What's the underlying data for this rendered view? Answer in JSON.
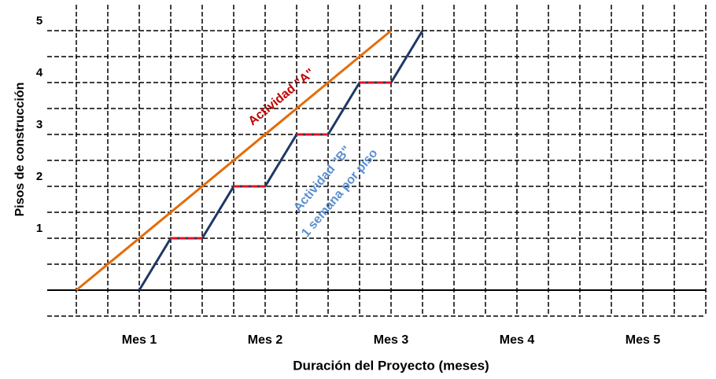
{
  "chart_data": {
    "type": "line",
    "x_title": "Duración del Proyecto (meses)",
    "y_title": "Pisos de construcción",
    "categories": [
      "Mes 1",
      "Mes 2",
      "Mes 3",
      "Mes 4",
      "Mes 5"
    ],
    "xlim": [
      0,
      20
    ],
    "xticks": [
      0,
      1,
      2,
      3,
      4,
      5,
      6,
      7,
      8,
      9,
      10,
      11,
      12,
      13,
      14,
      15,
      16,
      17,
      18,
      19,
      20
    ],
    "ylim": [
      -0.5,
      5.5
    ],
    "yticks": [
      1,
      2,
      3,
      4,
      5
    ],
    "y_minor_grid": [
      -0.5,
      0.5,
      1.5,
      2.5,
      3.5,
      4.5
    ],
    "grid": true,
    "wait_color": "#e8101a",
    "series": [
      {
        "name": "Actividad \"A\"",
        "color": "#e46c0a",
        "x": [
          0,
          10
        ],
        "values": [
          0,
          5
        ]
      },
      {
        "name": "Actividad \"B\"",
        "subtitle": "1 semana por piso",
        "color": "#1f3864",
        "x": [
          2,
          3,
          4,
          5,
          6,
          7,
          8,
          9,
          10,
          11
        ],
        "values": [
          0,
          1,
          1,
          2,
          2,
          3,
          3,
          4,
          4,
          5
        ]
      }
    ]
  }
}
